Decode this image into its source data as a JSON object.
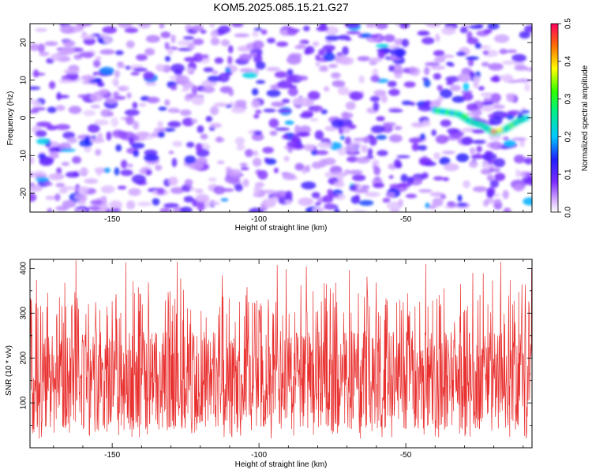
{
  "figure": {
    "title": "KOM5.2025.085.15.21.G27"
  },
  "chart_data": [
    {
      "type": "heatmap",
      "title": "KOM5.2025.085.15.21.G27",
      "xlabel": "Height of straight line (km)",
      "ylabel": "Frequency (Hz)",
      "xlim": [
        -178,
        -7
      ],
      "ylim": [
        -25,
        25
      ],
      "x_ticks": [
        -150,
        -100,
        -50
      ],
      "y_ticks": [
        -20,
        -10,
        0,
        10,
        20
      ],
      "colorbar": {
        "label": "Normalized spectral amplitude",
        "range": [
          0.0,
          0.5
        ],
        "ticks": [
          "0.0",
          "0.1",
          "0.2",
          "0.3",
          "0.4",
          "0.5"
        ],
        "colormap": "rainbow (white-violet-blue-cyan-green-yellow-red)"
      },
      "track": {
        "description_points": [
          {
            "x": -40,
            "y": 2
          },
          {
            "x": -32,
            "y": 1
          },
          {
            "x": -28,
            "y": -1
          },
          {
            "x": -24,
            "y": -2
          },
          {
            "x": -20,
            "y": -4
          },
          {
            "x": -16,
            "y": -3
          },
          {
            "x": -12,
            "y": -1
          },
          {
            "x": -9,
            "y": 0
          }
        ],
        "peak_value": 0.45
      },
      "background_level": 0.05,
      "grid": false
    },
    {
      "type": "line",
      "xlabel": "Height of straight line (km)",
      "ylabel": "SNR (10 * v/v)",
      "xlim": [
        -178,
        -7
      ],
      "ylim": [
        0,
        420
      ],
      "x_ticks": [
        -150,
        -100,
        -50
      ],
      "y_ticks": [
        100,
        200,
        300,
        400
      ],
      "series": [
        {
          "color": "#e8302f",
          "mean": 150,
          "typical_range": [
            20,
            330
          ],
          "max": 420
        }
      ],
      "grid": false
    }
  ],
  "colors": {
    "snr_line": "#e8302f",
    "axis": "#000000",
    "background": "#ffffff"
  }
}
